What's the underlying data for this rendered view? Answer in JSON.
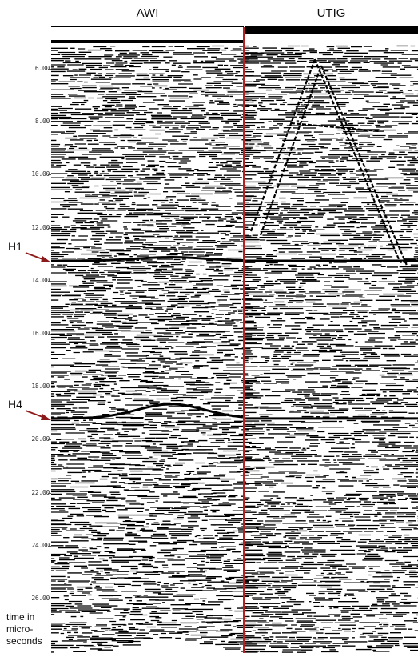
{
  "panels": [
    {
      "label": "AWI"
    },
    {
      "label": "UTIG"
    }
  ],
  "y_axis": {
    "title": "time in\nmicro-\nseconds",
    "ticks": [
      {
        "value": 6,
        "label": "6.00"
      },
      {
        "value": 8,
        "label": "8.00"
      },
      {
        "value": 10,
        "label": "10.00"
      },
      {
        "value": 12,
        "label": "12.00"
      },
      {
        "value": 14,
        "label": "14.00"
      },
      {
        "value": 16,
        "label": "16.00"
      },
      {
        "value": 18,
        "label": "18.00"
      },
      {
        "value": 20,
        "label": "20.00"
      },
      {
        "value": 22,
        "label": "22.00"
      },
      {
        "value": 24,
        "label": "24.00"
      },
      {
        "value": 26,
        "label": "26.00"
      }
    ]
  },
  "horizons": [
    {
      "label": "H1",
      "time": 13.25
    },
    {
      "label": "H4",
      "time": 19.2
    }
  ],
  "colors": {
    "divider": "#b22222",
    "arrow": "#8b1a1a",
    "ink": "#000000",
    "paper": "#ffffff"
  }
}
